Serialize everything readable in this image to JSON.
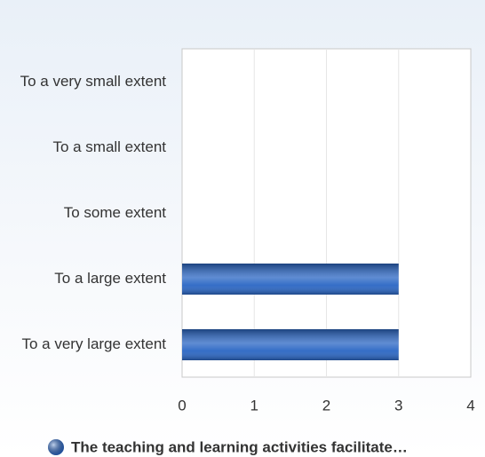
{
  "chart_data": {
    "type": "bar",
    "orientation": "horizontal",
    "categories": [
      "To a very small extent",
      "To a small extent",
      "To some extent",
      "To a large extent",
      "To a very large extent"
    ],
    "series": [
      {
        "name": "The teaching and learning activities facilitate…",
        "color": "#2a66c4",
        "values": [
          0,
          0,
          0,
          3,
          3
        ]
      }
    ],
    "xlim": [
      0,
      4
    ],
    "xticks": [
      0,
      1,
      2,
      3,
      4
    ],
    "grid": true,
    "legend": "bottom"
  }
}
